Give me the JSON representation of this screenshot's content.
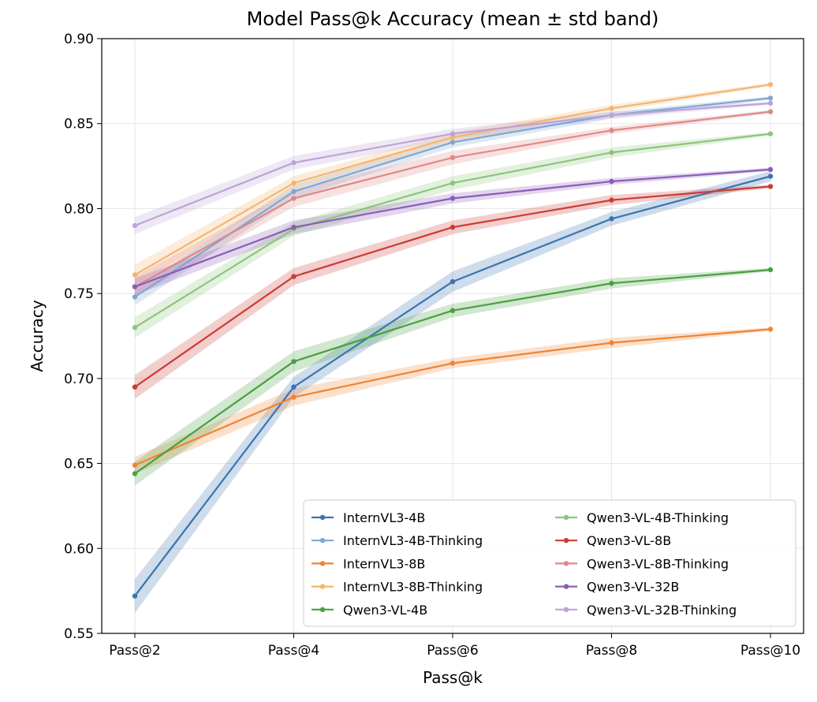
{
  "chart_data": {
    "type": "line",
    "title": "Model Pass@k Accuracy (mean ± std band)",
    "xlabel": "Pass@k",
    "ylabel": "Accuracy",
    "categories": [
      "Pass@2",
      "Pass@4",
      "Pass@6",
      "Pass@8",
      "Pass@10"
    ],
    "ylim": [
      0.55,
      0.9
    ],
    "yticks": [
      "0.55",
      "0.60",
      "0.65",
      "0.70",
      "0.75",
      "0.80",
      "0.85",
      "0.90"
    ],
    "grid": true,
    "legend_position": "lower-right",
    "legend_columns": 2,
    "band": "mean ± std",
    "series": [
      {
        "name": "InternVL3-4B",
        "color": "#3a75b0",
        "alpha": 1.0,
        "values": [
          0.572,
          0.695,
          0.757,
          0.794,
          0.819
        ],
        "std": [
          0.01,
          0.006,
          0.006,
          0.004,
          0.003
        ]
      },
      {
        "name": "InternVL3-4B-Thinking",
        "color": "#7fa7d3",
        "alpha": 1.0,
        "values": [
          0.748,
          0.81,
          0.839,
          0.855,
          0.865
        ],
        "std": [
          0.005,
          0.004,
          0.003,
          0.002,
          0.001
        ]
      },
      {
        "name": "InternVL3-8B",
        "color": "#ee8434",
        "alpha": 1.0,
        "values": [
          0.649,
          0.689,
          0.709,
          0.721,
          0.729
        ],
        "std": [
          0.005,
          0.005,
          0.003,
          0.003,
          0.001
        ]
      },
      {
        "name": "InternVL3-8B-Thinking",
        "color": "#f5b56e",
        "alpha": 1.0,
        "values": [
          0.761,
          0.815,
          0.842,
          0.859,
          0.873
        ],
        "std": [
          0.006,
          0.004,
          0.003,
          0.002,
          0.001
        ]
      },
      {
        "name": "Qwen3-VL-4B",
        "color": "#48a040",
        "alpha": 1.0,
        "values": [
          0.644,
          0.71,
          0.74,
          0.756,
          0.764
        ],
        "std": [
          0.007,
          0.006,
          0.004,
          0.003,
          0.001
        ]
      },
      {
        "name": "Qwen3-VL-4B-Thinking",
        "color": "#8dc47d",
        "alpha": 1.0,
        "values": [
          0.73,
          0.788,
          0.815,
          0.833,
          0.844
        ],
        "std": [
          0.006,
          0.004,
          0.004,
          0.003,
          0.001
        ]
      },
      {
        "name": "Qwen3-VL-8B",
        "color": "#cc3b34",
        "alpha": 1.0,
        "values": [
          0.695,
          0.76,
          0.789,
          0.805,
          0.813
        ],
        "std": [
          0.007,
          0.005,
          0.004,
          0.003,
          0.001
        ]
      },
      {
        "name": "Qwen3-VL-8B-Thinking",
        "color": "#df8985",
        "alpha": 1.0,
        "values": [
          0.754,
          0.806,
          0.83,
          0.846,
          0.857
        ],
        "std": [
          0.006,
          0.005,
          0.004,
          0.002,
          0.001
        ]
      },
      {
        "name": "Qwen3-VL-32B",
        "color": "#8a5cb8",
        "alpha": 1.0,
        "values": [
          0.754,
          0.789,
          0.806,
          0.816,
          0.823
        ],
        "std": [
          0.005,
          0.004,
          0.003,
          0.002,
          0.001
        ]
      },
      {
        "name": "Qwen3-VL-32B-Thinking",
        "color": "#bca4d6",
        "alpha": 1.0,
        "values": [
          0.79,
          0.827,
          0.844,
          0.855,
          0.862
        ],
        "std": [
          0.005,
          0.004,
          0.003,
          0.002,
          0.001
        ]
      }
    ]
  }
}
